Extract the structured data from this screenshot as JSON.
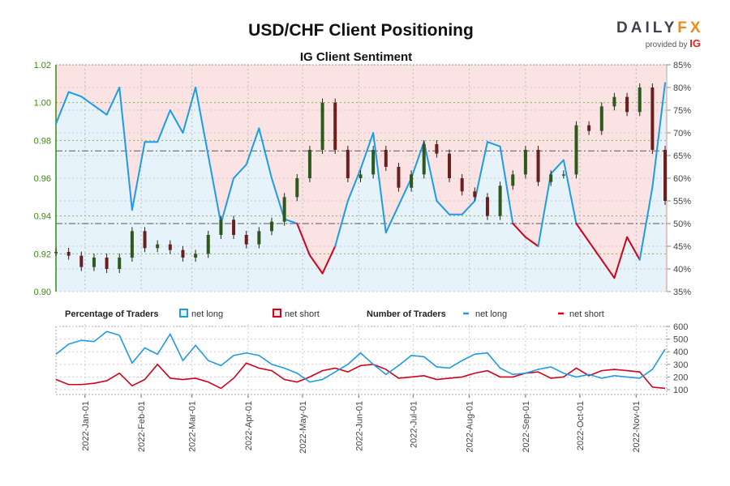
{
  "chart_data": {
    "type": "line",
    "title": "USD/CHF Client Positioning",
    "subtitle": "IG Client Sentiment",
    "dates": [
      "2021-12-16",
      "2021-12-23",
      "2021-12-30",
      "2022-01-06",
      "2022-01-13",
      "2022-01-20",
      "2022-01-27",
      "2022-02-03",
      "2022-02-10",
      "2022-02-17",
      "2022-02-24",
      "2022-03-03",
      "2022-03-10",
      "2022-03-17",
      "2022-03-24",
      "2022-03-31",
      "2022-04-07",
      "2022-04-14",
      "2022-04-21",
      "2022-04-28",
      "2022-05-05",
      "2022-05-12",
      "2022-05-19",
      "2022-05-26",
      "2022-06-02",
      "2022-06-09",
      "2022-06-16",
      "2022-06-23",
      "2022-06-30",
      "2022-07-07",
      "2022-07-14",
      "2022-07-21",
      "2022-07-28",
      "2022-08-04",
      "2022-08-11",
      "2022-08-18",
      "2022-08-25",
      "2022-09-01",
      "2022-09-08",
      "2022-09-15",
      "2022-09-22",
      "2022-09-29",
      "2022-10-06",
      "2022-10-13",
      "2022-10-20",
      "2022-10-27",
      "2022-11-03",
      "2022-11-10",
      "2022-11-17"
    ],
    "price": [
      0.921,
      0.919,
      0.913,
      0.918,
      0.912,
      0.918,
      0.932,
      0.923,
      0.925,
      0.922,
      0.918,
      0.92,
      0.93,
      0.938,
      0.93,
      0.925,
      0.932,
      0.937,
      0.95,
      0.96,
      0.975,
      1.0,
      0.975,
      0.96,
      0.962,
      0.975,
      0.966,
      0.955,
      0.962,
      0.978,
      0.973,
      0.96,
      0.953,
      0.95,
      0.94,
      0.956,
      0.962,
      0.975,
      0.958,
      0.962,
      0.962,
      0.988,
      0.985,
      0.998,
      1.003,
      0.995,
      1.008,
      0.975,
      0.948
    ],
    "pct_net_long": [
      72,
      79,
      78,
      76,
      74,
      80,
      53,
      68,
      68,
      75,
      70,
      80,
      65,
      50,
      60,
      63,
      71,
      60,
      51,
      50,
      43,
      39,
      45,
      55,
      62,
      70,
      48,
      54,
      60,
      68,
      55,
      52,
      52,
      55,
      68,
      67,
      50,
      47,
      45,
      61,
      64,
      50,
      46,
      42,
      38,
      47,
      42,
      58,
      81
    ],
    "traders_net_long": [
      380,
      460,
      490,
      480,
      560,
      530,
      310,
      430,
      380,
      540,
      330,
      450,
      330,
      290,
      370,
      390,
      370,
      300,
      270,
      230,
      160,
      180,
      240,
      300,
      390,
      300,
      220,
      290,
      370,
      360,
      280,
      270,
      330,
      380,
      390,
      270,
      220,
      230,
      260,
      280,
      230,
      200,
      220,
      190,
      210,
      200,
      190,
      260,
      420
    ],
    "traders_net_short": [
      180,
      140,
      140,
      150,
      170,
      230,
      130,
      180,
      300,
      190,
      180,
      190,
      160,
      110,
      190,
      310,
      270,
      250,
      180,
      160,
      200,
      250,
      270,
      240,
      290,
      300,
      260,
      190,
      200,
      210,
      180,
      190,
      200,
      230,
      250,
      200,
      200,
      230,
      240,
      190,
      200,
      270,
      210,
      250,
      260,
      250,
      240,
      120,
      110
    ],
    "price_axis": {
      "range": [
        0.9,
        1.02
      ],
      "ticks": [
        "0.90",
        "0.92",
        "0.94",
        "0.96",
        "0.98",
        "1.00",
        "1.02"
      ],
      "color": "#3a8a0c"
    },
    "pct_axis": {
      "range": [
        35,
        85
      ],
      "ticks": [
        "35%",
        "40%",
        "45%",
        "50%",
        "55%",
        "60%",
        "65%",
        "70%",
        "75%",
        "80%",
        "85%"
      ]
    },
    "count_axis": {
      "range": [
        60,
        600
      ],
      "ticks": [
        "100",
        "200",
        "300",
        "400",
        "500",
        "600"
      ]
    },
    "reference_lines_pct": [
      50,
      66
    ],
    "x_ticks": [
      "2022-Jan-01",
      "2022-Feb-01",
      "2022-Mar-01",
      "2022-Apr-01",
      "2022-May-01",
      "2022-Jun-01",
      "2022-Jul-01",
      "2022-Aug-01",
      "2022-Sep-01",
      "2022-Oct-01",
      "2022-Nov-01"
    ],
    "x_tick_dates": [
      "2022-01-01",
      "2022-02-01",
      "2022-03-01",
      "2022-04-01",
      "2022-05-01",
      "2022-06-01",
      "2022-07-01",
      "2022-08-01",
      "2022-09-01",
      "2022-10-01",
      "2022-11-01"
    ],
    "grid": true,
    "legend": {
      "pct_label": "Percentage of Traders",
      "count_label": "Number of Traders",
      "net_long": "net long",
      "net_short": "net short",
      "placement": "between panels"
    },
    "colors": {
      "net_long": "#1e9be6",
      "net_short": "#d0021b",
      "long_fill": "#e6f3fb",
      "short_fill": "#fbe3e3",
      "candle_up": "#2d5a1b",
      "candle_down": "#6b1f1f"
    }
  },
  "logo": {
    "brand": "DAILYFX",
    "provided_by": "provided by",
    "ig": "IG"
  }
}
